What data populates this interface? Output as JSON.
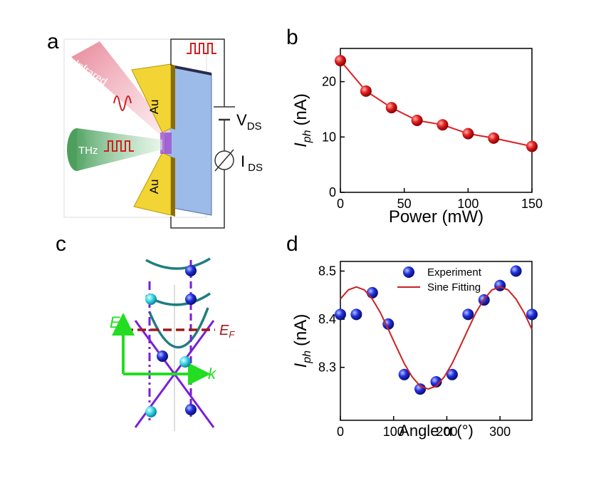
{
  "diagrams": {
    "a": {
      "label": "a",
      "beam_ir": "Infrared",
      "beam_thz": "THz",
      "electrode_top": "Au",
      "electrode_bottom": "Au",
      "voltage": "V",
      "voltage_sub": "DS",
      "current": "I",
      "current_sub": "DS"
    },
    "c": {
      "label": "c",
      "energy_axis": "E",
      "fermi": "E",
      "fermi_sub": "F",
      "momentum_axis": "k"
    }
  },
  "chart_data": [
    {
      "type": "line",
      "label": "b",
      "xlabel": "Power (mW)",
      "ylabel": {
        "main": "I",
        "sub": "ph",
        "unit": "(nA)"
      },
      "x": [
        0,
        20,
        40,
        60,
        80,
        100,
        120,
        150
      ],
      "series": [
        {
          "color": "#dd1f1f",
          "markers": true,
          "values": [
            23.8,
            18.3,
            15.3,
            13.0,
            12.2,
            10.6,
            9.8,
            8.3
          ]
        }
      ],
      "xlim": [
        0,
        150
      ],
      "ylim": [
        0,
        26
      ],
      "xticks": [
        0,
        50,
        100,
        150
      ],
      "yticks": [
        0,
        10,
        20
      ]
    },
    {
      "type": "scatter",
      "label": "d",
      "xlabel": "Angle α (°)",
      "ylabel": {
        "main": "I",
        "sub": "ph",
        "unit": "(nA)"
      },
      "legend": "upper right",
      "series": [
        {
          "name": "Experiment",
          "color": "#1f2fd8",
          "type": "scatter",
          "x": [
            0,
            30,
            60,
            90,
            120,
            150,
            180,
            210,
            240,
            270,
            300,
            330,
            360
          ],
          "values": [
            8.41,
            8.41,
            8.455,
            8.39,
            8.285,
            8.255,
            8.27,
            8.285,
            8.41,
            8.44,
            8.47,
            8.5,
            8.41
          ]
        },
        {
          "name": "Sine Fitting",
          "color": "#cc2222",
          "type": "line",
          "x": [
            0,
            15,
            30,
            45,
            60,
            75,
            90,
            105,
            120,
            135,
            150,
            165,
            180,
            195,
            210,
            225,
            240,
            255,
            270,
            285,
            300,
            315,
            330,
            345,
            360
          ],
          "values": [
            8.442,
            8.461,
            8.467,
            8.461,
            8.442,
            8.414,
            8.379,
            8.343,
            8.308,
            8.28,
            8.261,
            8.255,
            8.261,
            8.28,
            8.308,
            8.343,
            8.379,
            8.414,
            8.442,
            8.461,
            8.467,
            8.461,
            8.442,
            8.414,
            8.379
          ]
        }
      ],
      "xlim": [
        0,
        360
      ],
      "ylim": [
        8.19,
        8.52
      ],
      "xticks": [
        0,
        100,
        200,
        300
      ],
      "yticks": [
        8.3,
        8.4,
        8.5
      ]
    }
  ]
}
